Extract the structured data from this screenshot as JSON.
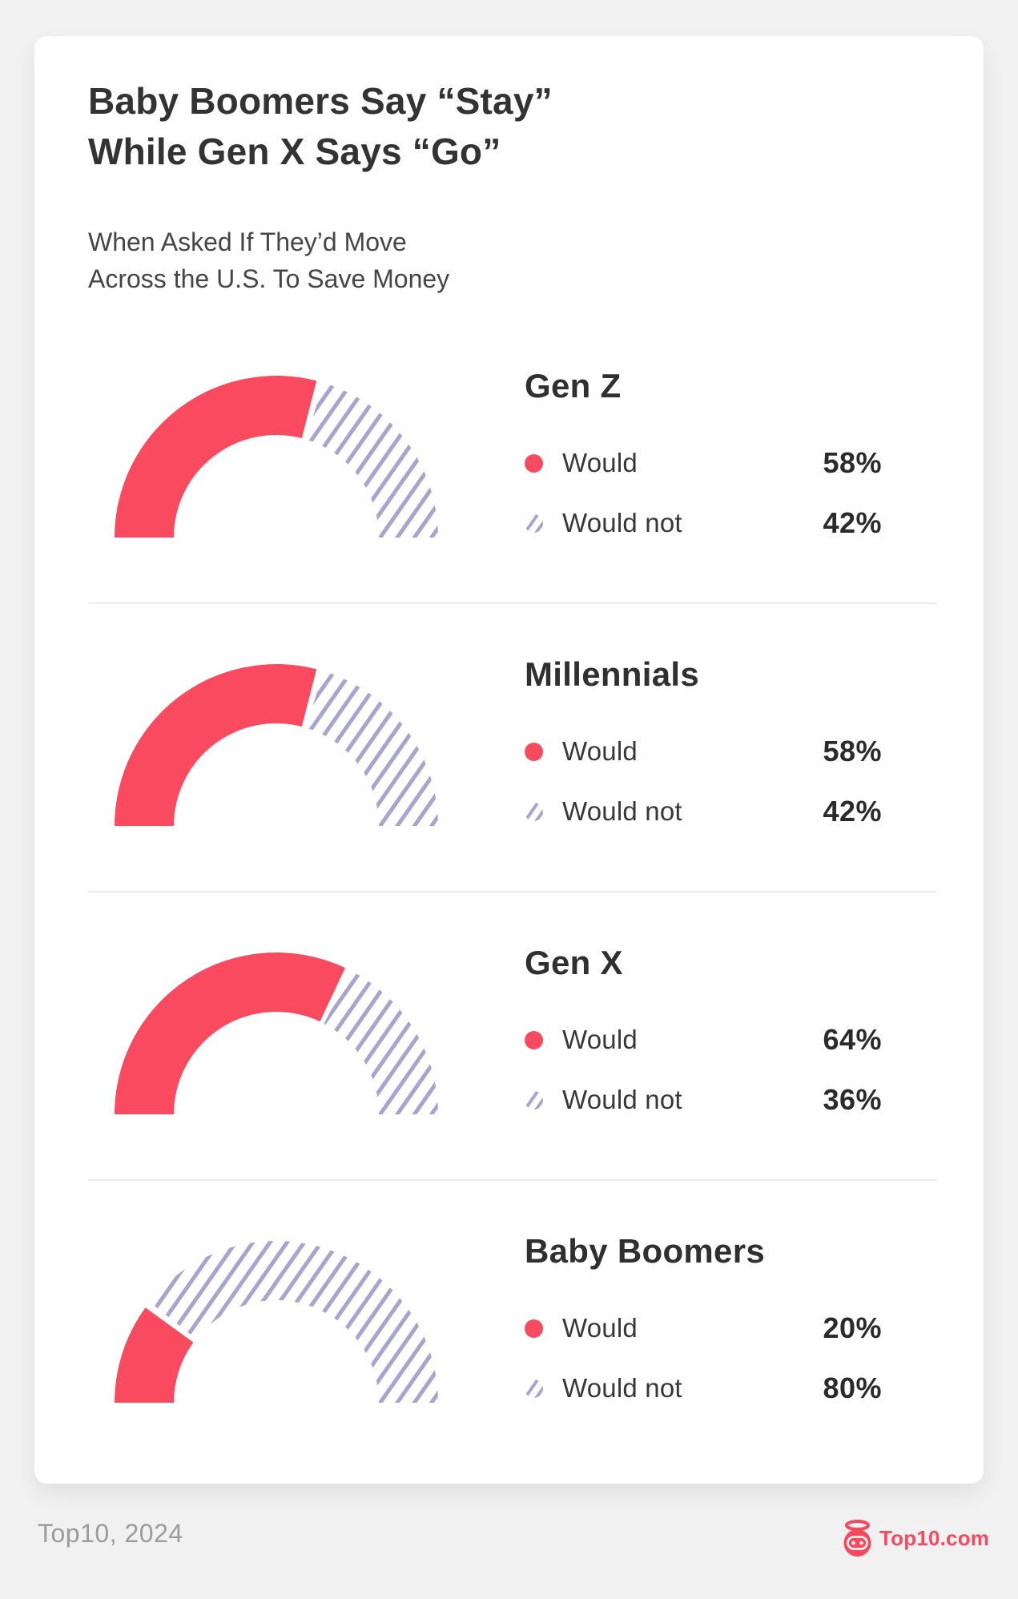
{
  "header": {
    "title": "Baby Boomers Say “Stay”\nWhile Gen X Says “Go”",
    "subtitle": "When Asked If They’d Move\nAcross the U.S. To Save Money"
  },
  "legend": {
    "would_label": "Would",
    "would_not_label": "Would not"
  },
  "footer": {
    "source": "Top10, 2024",
    "brand": {
      "text": "Top10.com",
      "icon": "top10-robot-logo"
    }
  },
  "colors": {
    "would_solid": "#FA4A60",
    "would_not_hatch": "#A8A4D0",
    "heading_text": "#333333",
    "divider": "#EAEAEA",
    "card_background": "#FFFFFF",
    "page_background": "#F1F1F1",
    "footer_text": "#9B9B9B",
    "brand_pink": "#F8485E"
  },
  "chart_data": {
    "type": "pie",
    "variant": "semicircle-donut-gauge",
    "unit": "%",
    "title": "Baby Boomers Say “Stay” While Gen X Says “Go”",
    "subtitle": "When Asked If They’d Move Across the U.S. To Save Money",
    "legend_entries": [
      "Would",
      "Would not"
    ],
    "legend_position": "right",
    "angle_span_degrees": 180,
    "groups": [
      {
        "label": "Gen Z",
        "series": [
          {
            "name": "Would",
            "value": 58
          },
          {
            "name": "Would not",
            "value": 42
          }
        ]
      },
      {
        "label": "Millennials",
        "series": [
          {
            "name": "Would",
            "value": 58
          },
          {
            "name": "Would not",
            "value": 42
          }
        ]
      },
      {
        "label": "Gen X",
        "series": [
          {
            "name": "Would",
            "value": 64
          },
          {
            "name": "Would not",
            "value": 36
          }
        ]
      },
      {
        "label": "Baby Boomers",
        "series": [
          {
            "name": "Would",
            "value": 20
          },
          {
            "name": "Would not",
            "value": 80
          }
        ]
      }
    ],
    "style_note": "Solid pink arc = Would, periwinkle diagonal-hatched arc = Would not; each gauge starts at left (180°) and sweeps clockwise over 180°."
  }
}
